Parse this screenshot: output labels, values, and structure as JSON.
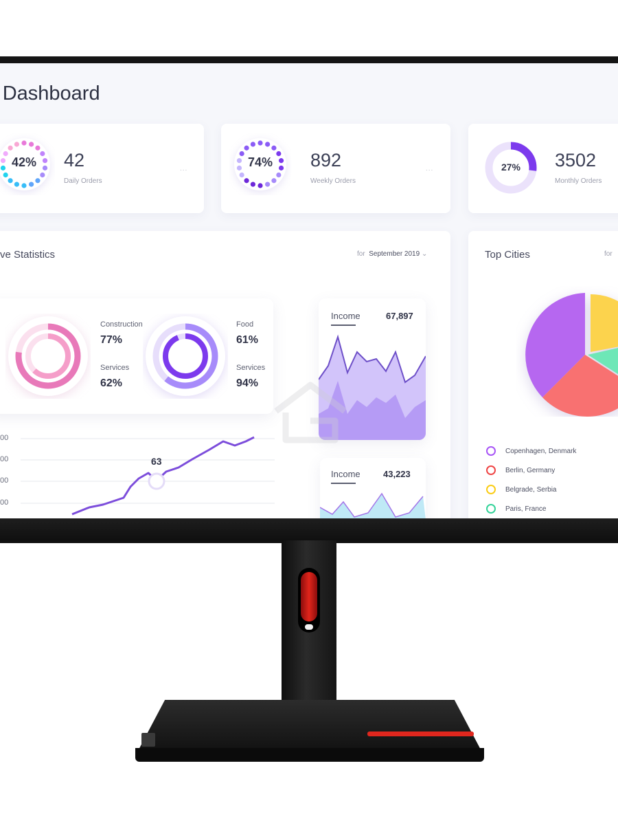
{
  "dashboard": {
    "title": "Dashboard",
    "stats": [
      {
        "percent": "42%",
        "value": "42",
        "label": "Daily Orders",
        "menu": "..."
      },
      {
        "percent": "74%",
        "value": "892",
        "label": "Weekly Orders",
        "menu": "..."
      },
      {
        "percent": "27%",
        "value": "3502",
        "label": "Monthly Orders"
      }
    ],
    "statistics": {
      "title": "ve Statistics",
      "period_prefix": "for",
      "period": "September 2019",
      "period_caret": "⌄",
      "rings": [
        {
          "label_top": "Construction",
          "value_top": "77%",
          "label_bottom": "Services",
          "value_bottom": "62%"
        },
        {
          "label_top": "Food",
          "value_top": "61%",
          "label_bottom": "Services",
          "value_bottom": "94%"
        }
      ],
      "y_ticks": [
        "00",
        "00",
        "00",
        "00"
      ],
      "point_label": "63"
    },
    "income_cards": [
      {
        "label": "Income",
        "value": "67,897"
      },
      {
        "label": "Income",
        "value": "43,223"
      }
    ],
    "top_cities": {
      "title": "Top Cities",
      "period_prefix": "for",
      "legend": [
        {
          "name": "Copenhagen, Denmark",
          "color": "#a855f7"
        },
        {
          "name": "Berlin, Germany",
          "color": "#ef4444"
        },
        {
          "name": "Belgrade, Serbia",
          "color": "#facc15"
        },
        {
          "name": "Paris, France",
          "color": "#34d399"
        }
      ]
    }
  }
}
